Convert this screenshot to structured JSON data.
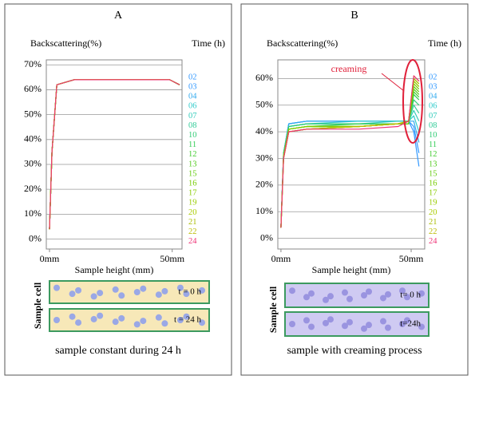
{
  "chart_data": [
    {
      "type": "line",
      "panel_label": "A",
      "y_label": "Backscattering(%)",
      "legend_title": "Time (h)",
      "x_label": "Sample height (mm)",
      "xlim": [
        -1.3,
        54
      ],
      "xticks": [
        {
          "value": 0,
          "label": "0mm"
        },
        {
          "value": 50,
          "label": "50mm"
        }
      ],
      "ylim": [
        -4,
        72
      ],
      "yticks": [
        {
          "value": 0,
          "label": "0%"
        },
        {
          "value": 10,
          "label": "10%"
        },
        {
          "value": 20,
          "label": "20%"
        },
        {
          "value": 30,
          "label": "30%"
        },
        {
          "value": 40,
          "label": "40%"
        },
        {
          "value": 50,
          "label": "50%"
        },
        {
          "value": 60,
          "label": "60%"
        },
        {
          "value": 70,
          "label": "70%"
        }
      ],
      "grid": true,
      "x": [
        0,
        1,
        3,
        10,
        30,
        45,
        49,
        51,
        53
      ],
      "series": [
        {
          "name": "02",
          "color": "#3399ff",
          "values": [
            4,
            35,
            62,
            64,
            64,
            64,
            64,
            63,
            62
          ]
        },
        {
          "name": "03",
          "color": "#3399ff",
          "values": [
            4,
            35,
            62,
            64,
            64,
            64,
            64,
            63,
            62
          ]
        },
        {
          "name": "04",
          "color": "#33aaee",
          "values": [
            4,
            35,
            62,
            64,
            64,
            64,
            64,
            63,
            62
          ]
        },
        {
          "name": "06",
          "color": "#33cccc",
          "values": [
            4,
            35,
            62,
            64,
            64,
            64,
            64,
            63,
            62
          ]
        },
        {
          "name": "07",
          "color": "#33ccbb",
          "values": [
            4,
            35,
            62,
            64,
            64,
            64,
            64,
            63,
            62
          ]
        },
        {
          "name": "08",
          "color": "#33cc99",
          "values": [
            4,
            35,
            62,
            64,
            64,
            64,
            64,
            63,
            62
          ]
        },
        {
          "name": "10",
          "color": "#33cc77",
          "values": [
            4,
            35,
            62,
            64,
            64,
            64,
            64,
            63,
            62
          ]
        },
        {
          "name": "11",
          "color": "#33cc55",
          "values": [
            4,
            35,
            62,
            64,
            64,
            64,
            64,
            63,
            62
          ]
        },
        {
          "name": "12",
          "color": "#44cc33",
          "values": [
            4,
            35,
            62,
            64,
            64,
            64,
            64,
            63,
            62
          ]
        },
        {
          "name": "13",
          "color": "#55cc22",
          "values": [
            4,
            35,
            62,
            64,
            64,
            64,
            64,
            63,
            62
          ]
        },
        {
          "name": "15",
          "color": "#66cc11",
          "values": [
            4,
            35,
            62,
            64,
            64,
            64,
            64,
            63,
            62
          ]
        },
        {
          "name": "16",
          "color": "#77cc00",
          "values": [
            4,
            35,
            62,
            64,
            64,
            64,
            64,
            63,
            62
          ]
        },
        {
          "name": "17",
          "color": "#88cc00",
          "values": [
            4,
            35,
            62,
            64,
            64,
            64,
            64,
            63,
            62
          ]
        },
        {
          "name": "19",
          "color": "#99cc00",
          "values": [
            4,
            35,
            62,
            64,
            64,
            64,
            64,
            63,
            62
          ]
        },
        {
          "name": "20",
          "color": "#aacc00",
          "values": [
            4,
            35,
            62,
            64,
            64,
            64,
            64,
            63,
            62
          ]
        },
        {
          "name": "21",
          "color": "#aabb00",
          "values": [
            4,
            35,
            62,
            64,
            64,
            64,
            64,
            63,
            62
          ]
        },
        {
          "name": "22",
          "color": "#bbbb00",
          "values": [
            4,
            35,
            62,
            64,
            64,
            64,
            64,
            63,
            62
          ]
        },
        {
          "name": "24",
          "color": "#ee3377",
          "values": [
            4,
            35,
            62,
            64,
            64,
            64,
            64,
            63,
            62
          ]
        }
      ],
      "cell_label": "Sample cell",
      "cells": [
        "t = 0 h",
        "t = 24 h"
      ],
      "caption": "sample constant during 24 h"
    },
    {
      "type": "line",
      "panel_label": "B",
      "y_label": "Backscattering(%)",
      "legend_title": "Time (h)",
      "x_label": "Sample height (mm)",
      "annotation": "creaming",
      "xlim": [
        -1.2,
        55.2
      ],
      "xticks": [
        {
          "value": 0,
          "label": "0mm"
        },
        {
          "value": 50,
          "label": "50mm"
        }
      ],
      "ylim": [
        -4,
        67
      ],
      "yticks": [
        {
          "value": 0,
          "label": "0%"
        },
        {
          "value": 10,
          "label": "10%"
        },
        {
          "value": 20,
          "label": "20%"
        },
        {
          "value": 30,
          "label": "30%"
        },
        {
          "value": 40,
          "label": "40%"
        },
        {
          "value": 50,
          "label": "50%"
        },
        {
          "value": 60,
          "label": "60%"
        }
      ],
      "grid": true,
      "x": [
        0,
        1,
        3,
        10,
        30,
        45,
        49,
        51,
        53
      ],
      "series": [
        {
          "name": "02",
          "color": "#3399ff",
          "values": [
            4,
            32,
            43,
            44,
            44,
            44,
            44,
            40,
            27
          ]
        },
        {
          "name": "03",
          "color": "#3399ff",
          "values": [
            4,
            32,
            43,
            44,
            44,
            44,
            44,
            42,
            32
          ]
        },
        {
          "name": "04",
          "color": "#33aaee",
          "values": [
            4,
            32,
            43,
            44,
            44,
            44,
            44,
            44,
            36
          ]
        },
        {
          "name": "06",
          "color": "#33cccc",
          "values": [
            4,
            32,
            42,
            43,
            44,
            44,
            44,
            46,
            40
          ]
        },
        {
          "name": "07",
          "color": "#33ccbb",
          "values": [
            4,
            32,
            42,
            43,
            43,
            44,
            44,
            48,
            44
          ]
        },
        {
          "name": "08",
          "color": "#33cc99",
          "values": [
            4,
            32,
            42,
            43,
            43,
            43,
            44,
            50,
            47
          ]
        },
        {
          "name": "10",
          "color": "#33cc77",
          "values": [
            4,
            31,
            42,
            43,
            43,
            43,
            44,
            52,
            50
          ]
        },
        {
          "name": "11",
          "color": "#33cc55",
          "values": [
            4,
            31,
            41,
            42,
            43,
            43,
            43,
            54,
            52
          ]
        },
        {
          "name": "12",
          "color": "#44cc33",
          "values": [
            4,
            31,
            41,
            42,
            42,
            43,
            43,
            55,
            53
          ]
        },
        {
          "name": "13",
          "color": "#55cc22",
          "values": [
            4,
            31,
            41,
            42,
            42,
            43,
            43,
            56,
            54
          ]
        },
        {
          "name": "15",
          "color": "#66cc11",
          "values": [
            4,
            31,
            41,
            42,
            42,
            43,
            43,
            57,
            55
          ]
        },
        {
          "name": "16",
          "color": "#77cc00",
          "values": [
            4,
            31,
            41,
            42,
            42,
            43,
            44,
            58,
            56
          ]
        },
        {
          "name": "17",
          "color": "#88cc00",
          "values": [
            4,
            31,
            41,
            42,
            42,
            43,
            44,
            59,
            57
          ]
        },
        {
          "name": "19",
          "color": "#99cc00",
          "values": [
            4,
            30,
            40,
            41,
            42,
            43,
            44,
            59,
            57
          ]
        },
        {
          "name": "20",
          "color": "#aacc00",
          "values": [
            4,
            30,
            40,
            41,
            42,
            43,
            44,
            60,
            58
          ]
        },
        {
          "name": "21",
          "color": "#aabb00",
          "values": [
            4,
            30,
            40,
            41,
            42,
            43,
            44,
            60,
            58
          ]
        },
        {
          "name": "22",
          "color": "#bbbb00",
          "values": [
            4,
            30,
            40,
            41,
            42,
            43,
            44,
            61,
            59
          ]
        },
        {
          "name": "24",
          "color": "#ee3377",
          "values": [
            4,
            30,
            40,
            41,
            41,
            42,
            44,
            61,
            59
          ]
        }
      ],
      "cell_label": "Sample cell",
      "cells": [
        "t= 0 h",
        "t=24h"
      ],
      "caption": "sample with creaming process"
    }
  ]
}
